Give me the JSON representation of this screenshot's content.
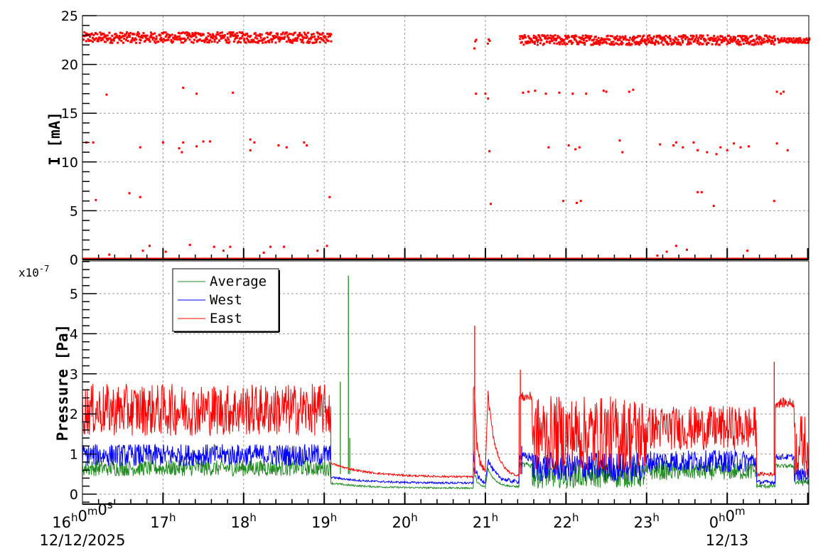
{
  "chart_data": [
    {
      "type": "scatter",
      "ylabel": "I [mA]",
      "ylim": [
        0,
        25
      ],
      "yticks": [
        "0",
        "5",
        "10",
        "15",
        "20",
        "25"
      ],
      "grid": true,
      "colors": {
        "east": "#ff0000"
      },
      "main_band": [
        {
          "from": "16:00",
          "to": "19:05",
          "low": 22.2,
          "high": 23.3
        },
        {
          "from": "20:51",
          "to": "20:53",
          "low": 21.5,
          "high": 22.8
        },
        {
          "from": "21:01",
          "to": "21:03",
          "low": 22.0,
          "high": 23.0
        },
        {
          "from": "21:25",
          "to": "00:35",
          "low": 22.0,
          "high": 23.0
        },
        {
          "from": "00:37",
          "to": "01:01",
          "low": 22.2,
          "high": 22.7
        }
      ],
      "baseline": {
        "from": "16:00",
        "to": "01:01",
        "value": 0
      },
      "outliers": [
        [
          "16:03",
          12.0
        ],
        [
          "16:08",
          12.0
        ],
        [
          "16:10",
          6.1
        ],
        [
          "16:18",
          16.9
        ],
        [
          "16:20",
          0.5
        ],
        [
          "16:35",
          6.8
        ],
        [
          "16:43",
          11.5
        ],
        [
          "16:43",
          6.4
        ],
        [
          "16:45",
          0.9
        ],
        [
          "16:50",
          1.4
        ],
        [
          "17:00",
          12.0
        ],
        [
          "17:02",
          0.8
        ],
        [
          "17:12",
          11.4
        ],
        [
          "17:14",
          11.0
        ],
        [
          "17:15",
          17.6
        ],
        [
          "17:15",
          12.0
        ],
        [
          "17:20",
          1.5
        ],
        [
          "17:25",
          17.0
        ],
        [
          "17:25",
          11.6
        ],
        [
          "17:30",
          12.1
        ],
        [
          "17:35",
          12.1
        ],
        [
          "17:38",
          1.3
        ],
        [
          "17:45",
          0.9
        ],
        [
          "17:50",
          1.3
        ],
        [
          "17:52",
          17.1
        ],
        [
          "18:05",
          12.3
        ],
        [
          "18:05",
          11.2
        ],
        [
          "18:08",
          12.0
        ],
        [
          "18:15",
          0.7
        ],
        [
          "18:20",
          1.3
        ],
        [
          "18:26",
          11.7
        ],
        [
          "18:30",
          1.3
        ],
        [
          "18:32",
          11.5
        ],
        [
          "18:45",
          12.0
        ],
        [
          "18:47",
          11.7
        ],
        [
          "18:55",
          0.9
        ],
        [
          "19:02",
          1.4
        ],
        [
          "19:04",
          6.4
        ],
        [
          "20:53",
          17.0
        ],
        [
          "21:00",
          17.0
        ],
        [
          "21:03",
          11.1
        ],
        [
          "21:02",
          16.5
        ],
        [
          "21:04",
          5.7
        ],
        [
          "21:28",
          17.1
        ],
        [
          "21:32",
          17.2
        ],
        [
          "21:37",
          17.3
        ],
        [
          "21:45",
          17.0
        ],
        [
          "21:47",
          11.5
        ],
        [
          "21:55",
          17.1
        ],
        [
          "21:58",
          6.0
        ],
        [
          "22:02",
          11.7
        ],
        [
          "22:05",
          17.0
        ],
        [
          "22:07",
          11.3
        ],
        [
          "22:08",
          5.8
        ],
        [
          "22:10",
          11.5
        ],
        [
          "22:11",
          6.0
        ],
        [
          "22:15",
          17.0
        ],
        [
          "22:28",
          17.3
        ],
        [
          "22:30",
          17.2
        ],
        [
          "22:40",
          12.2
        ],
        [
          "22:42",
          11.0
        ],
        [
          "22:47",
          17.2
        ],
        [
          "22:50",
          17.4
        ],
        [
          "23:08",
          0.4
        ],
        [
          "23:10",
          11.8
        ],
        [
          "23:15",
          0.8
        ],
        [
          "23:20",
          11.7
        ],
        [
          "23:22",
          1.4
        ],
        [
          "23:22",
          12.0
        ],
        [
          "23:27",
          11.5
        ],
        [
          "23:30",
          1.0
        ],
        [
          "23:35",
          12.0
        ],
        [
          "23:38",
          6.9
        ],
        [
          "23:38",
          11.2
        ],
        [
          "23:41",
          6.9
        ],
        [
          "23:45",
          11.0
        ],
        [
          "23:50",
          5.5
        ],
        [
          "23:52",
          10.8
        ],
        [
          "23:55",
          11.5
        ],
        [
          "00:00",
          11.2
        ],
        [
          "00:05",
          11.9
        ],
        [
          "00:10",
          11.5
        ],
        [
          "00:15",
          0.9
        ],
        [
          "00:16",
          11.6
        ],
        [
          "00:35",
          6.0
        ],
        [
          "00:37",
          17.2
        ],
        [
          "00:37",
          11.9
        ],
        [
          "00:40",
          17.0
        ],
        [
          "00:42",
          17.2
        ],
        [
          "00:45",
          11.2
        ]
      ]
    },
    {
      "type": "line",
      "ylabel": "Pressure [Pa]",
      "scale_label": "x10",
      "scale_exponent": "-7",
      "ylim": [
        -0.25,
        5.9
      ],
      "yticks": [
        "0",
        "1",
        "2",
        "3",
        "4",
        "5"
      ],
      "grid": true,
      "legend_position": "top-left",
      "series": [
        {
          "name": "Average",
          "color": "#228b22",
          "segments": [
            {
              "from": "16:00",
              "to": "19:05",
              "low": 0.45,
              "high": 0.85
            },
            {
              "from": "19:05",
              "to": "20:51",
              "low": 0.25,
              "high": 0.3,
              "low_end": 0.13,
              "high_end": 0.17
            },
            {
              "from": "20:51",
              "to": "21:00",
              "low": 0.6,
              "high": 0.75,
              "low_end": 0.15,
              "high_end": 0.2
            },
            {
              "from": "21:02",
              "to": "21:25",
              "low": 0.6,
              "high": 0.65,
              "low_end": 0.15,
              "high_end": 0.2
            },
            {
              "from": "21:25",
              "to": "21:35",
              "low": 0.65,
              "high": 0.8
            },
            {
              "from": "21:35",
              "to": "23:00",
              "low": 0.15,
              "high": 0.8
            },
            {
              "from": "23:00",
              "to": "00:22",
              "low": 0.35,
              "high": 0.8
            },
            {
              "from": "00:22",
              "to": "00:36",
              "low": 0.15,
              "high": 0.25
            },
            {
              "from": "00:36",
              "to": "00:50",
              "low": 0.65,
              "high": 0.75
            },
            {
              "from": "00:50",
              "to": "01:01",
              "low": 0.2,
              "high": 0.4
            }
          ],
          "spikes": [
            [
              "19:12",
              2.8
            ],
            [
              "19:18",
              5.45
            ],
            [
              "19:19",
              1.4
            ]
          ]
        },
        {
          "name": "West",
          "color": "#0000ff",
          "segments": [
            {
              "from": "16:00",
              "to": "19:05",
              "low": 0.7,
              "high": 1.25
            },
            {
              "from": "19:05",
              "to": "20:51",
              "low": 0.4,
              "high": 0.45,
              "low_end": 0.25,
              "high_end": 0.3
            },
            {
              "from": "20:51",
              "to": "21:00",
              "low": 0.8,
              "high": 1.1,
              "low_end": 0.25,
              "high_end": 0.35
            },
            {
              "from": "21:02",
              "to": "21:25",
              "low": 0.8,
              "high": 0.95,
              "low_end": 0.25,
              "high_end": 0.35
            },
            {
              "from": "21:25",
              "to": "21:35",
              "low": 0.8,
              "high": 1.05
            },
            {
              "from": "21:35",
              "to": "23:00",
              "low": 0.3,
              "high": 1.05
            },
            {
              "from": "23:00",
              "to": "00:22",
              "low": 0.55,
              "high": 1.1
            },
            {
              "from": "00:22",
              "to": "00:36",
              "low": 0.25,
              "high": 0.35
            },
            {
              "from": "00:36",
              "to": "00:50",
              "low": 0.85,
              "high": 1.0
            },
            {
              "from": "00:50",
              "to": "01:01",
              "low": 0.3,
              "high": 0.65
            }
          ],
          "spikes": [
            [
              "21:27",
              1.2
            ]
          ]
        },
        {
          "name": "East",
          "color": "#ff0000",
          "segments": [
            {
              "from": "16:00",
              "to": "19:05",
              "low": 1.45,
              "high": 2.75
            },
            {
              "from": "19:05",
              "to": "20:51",
              "low": 0.75,
              "high": 0.8,
              "low_end": 0.4,
              "high_end": 0.45
            },
            {
              "from": "20:51",
              "to": "21:00",
              "low": 2.4,
              "high": 3.6,
              "low_end": 0.5,
              "high_end": 0.6
            },
            {
              "from": "21:02",
              "to": "21:25",
              "low": 2.3,
              "high": 2.6,
              "low_end": 0.4,
              "high_end": 0.45
            },
            {
              "from": "21:25",
              "to": "21:35",
              "low": 2.3,
              "high": 2.55
            },
            {
              "from": "21:35",
              "to": "23:00",
              "low": 0.55,
              "high": 2.45
            },
            {
              "from": "23:00",
              "to": "00:22",
              "low": 1.1,
              "high": 2.2
            },
            {
              "from": "00:22",
              "to": "00:36",
              "low": 0.45,
              "high": 0.55
            },
            {
              "from": "00:36",
              "to": "00:50",
              "low": 2.15,
              "high": 2.4
            },
            {
              "from": "00:50",
              "to": "01:01",
              "low": 0.4,
              "high": 2.0
            }
          ],
          "spikes": [
            [
              "20:52",
              4.2
            ],
            [
              "21:26",
              3.1
            ],
            [
              "00:35",
              3.3
            ]
          ]
        }
      ]
    }
  ],
  "xaxis": {
    "ticks": [
      {
        "time": "16:00",
        "hour": "16",
        "sup": "h",
        "extra": "0",
        "extra_sup": "m",
        "extra2": "0",
        "extra2_sup": "s"
      },
      {
        "time": "17:00",
        "hour": "17",
        "sup": "h"
      },
      {
        "time": "18:00",
        "hour": "18",
        "sup": "h"
      },
      {
        "time": "19:00",
        "hour": "19",
        "sup": "h"
      },
      {
        "time": "20:00",
        "hour": "20",
        "sup": "h"
      },
      {
        "time": "21:00",
        "hour": "21",
        "sup": "h"
      },
      {
        "time": "22:00",
        "hour": "22",
        "sup": "h"
      },
      {
        "time": "23:00",
        "hour": "23",
        "sup": "h"
      },
      {
        "time": "00:00",
        "hour": "0",
        "sup": "h",
        "extra": "0",
        "extra_sup": "m"
      }
    ],
    "date_start": "12/12/2025",
    "date_next": "12/13",
    "range": [
      "16:00",
      "01:01"
    ]
  }
}
